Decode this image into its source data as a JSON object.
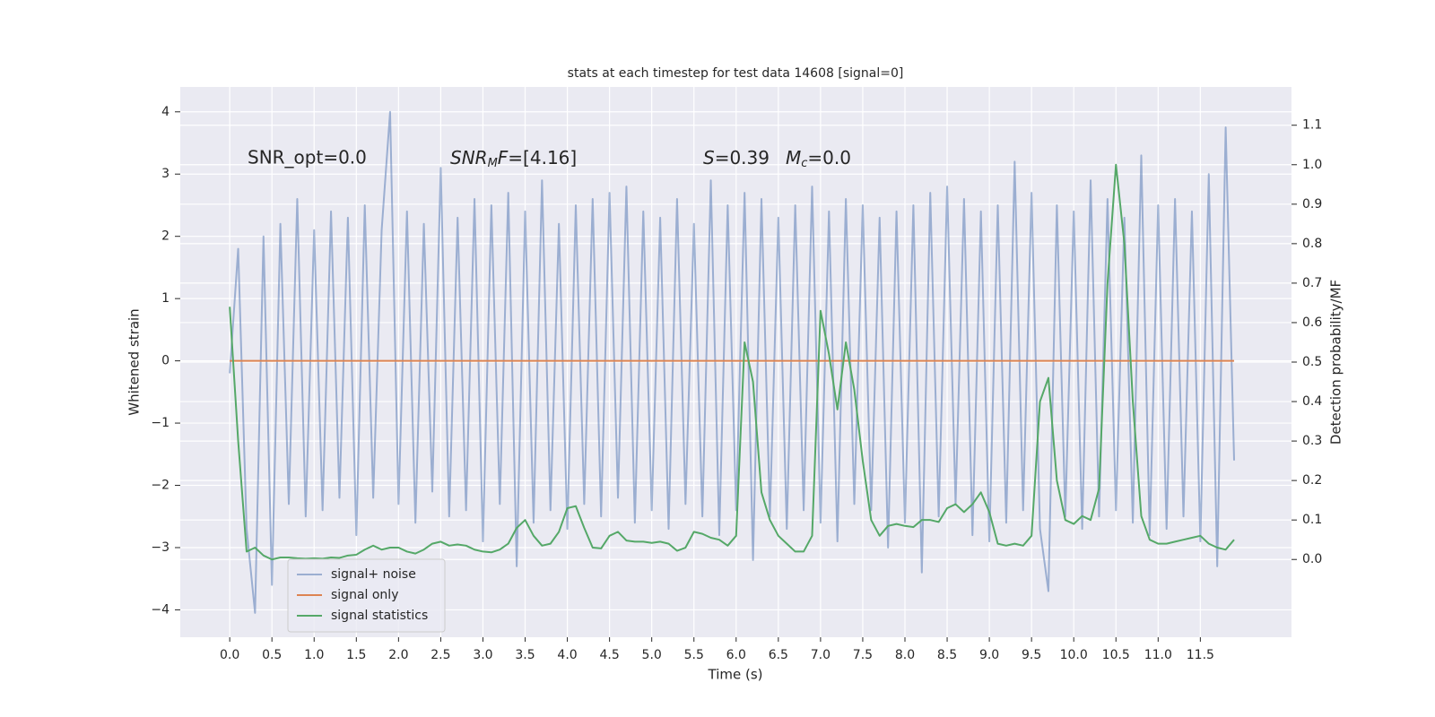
{
  "chart_data": {
    "type": "line",
    "title": "stats at each timestep for test data 14608 [signal=0]",
    "xlabel": "Time (s)",
    "ylabel": "Whitened strain",
    "y2label": "Detection probability/MF",
    "annotations": [
      [
        "SNR_opt=0.0"
      ],
      [
        "SNR",
        "M",
        "F",
        "=[4.16]"
      ],
      [
        "S",
        "=0.39",
        "M",
        "c",
        "=0.0"
      ]
    ],
    "grid": true,
    "legend": "lower left",
    "xlim": [
      -0.586,
      12.58
    ],
    "ylim": [
      -4.44,
      4.4
    ],
    "y2lim": [
      -0.197,
      1.197
    ],
    "xticks": [
      {
        "value": 0,
        "label": "0.0"
      },
      0.5,
      {
        "value": 1,
        "label": "1.0"
      },
      1.5,
      {
        "value": 2,
        "label": "2.0"
      },
      2.5,
      {
        "value": 3,
        "label": "3.0"
      },
      3.5,
      {
        "value": 4,
        "label": "4.0"
      },
      4.5,
      {
        "value": 5,
        "label": "5.0"
      },
      5.5,
      {
        "value": 6,
        "label": "6.0"
      },
      6.5,
      {
        "value": 7,
        "label": "7.0"
      },
      7.5,
      {
        "value": 8,
        "label": "8.0"
      },
      8.5,
      {
        "value": 9,
        "label": "9.0"
      },
      9.5,
      {
        "value": 10,
        "label": "10.0"
      },
      10.5,
      {
        "value": 11,
        "label": "11.0"
      },
      11.5
    ],
    "yticks": [
      {
        "value": -4,
        "label": "−4"
      },
      {
        "value": -3,
        "label": "−3"
      },
      {
        "value": -2,
        "label": "−2"
      },
      {
        "value": -1,
        "label": "−1"
      },
      0,
      1,
      2,
      3,
      4
    ],
    "y2ticks": [
      {
        "value": 0,
        "label": "0.0"
      },
      0.1,
      0.2,
      0.3,
      0.4,
      0.5,
      0.6,
      0.7,
      0.8,
      0.9,
      {
        "value": 1,
        "label": "1.0"
      },
      1.1
    ],
    "x": [
      0.0,
      0.1,
      0.2,
      0.3,
      0.4,
      0.5,
      0.6,
      0.7,
      0.8,
      0.9,
      1.0,
      1.1,
      1.2,
      1.3,
      1.4,
      1.5,
      1.6,
      1.7,
      1.8,
      1.9,
      2.0,
      2.1,
      2.2,
      2.3,
      2.4,
      2.5,
      2.6,
      2.7,
      2.8,
      2.9,
      3.0,
      3.1,
      3.2,
      3.3,
      3.4,
      3.5,
      3.6,
      3.7,
      3.8,
      3.9,
      4.0,
      4.1,
      4.2,
      4.3,
      4.4,
      4.5,
      4.6,
      4.7,
      4.8,
      4.9,
      5.0,
      5.1,
      5.2,
      5.3,
      5.4,
      5.5,
      5.6,
      5.7,
      5.8,
      5.9,
      6.0,
      6.1,
      6.2,
      6.3,
      6.4,
      6.5,
      6.6,
      6.7,
      6.8,
      6.9,
      7.0,
      7.1,
      7.2,
      7.3,
      7.4,
      7.5,
      7.6,
      7.7,
      7.8,
      7.9,
      8.0,
      8.1,
      8.2,
      8.3,
      8.4,
      8.5,
      8.6,
      8.7,
      8.8,
      8.9,
      9.0,
      9.1,
      9.2,
      9.3,
      9.4,
      9.5,
      9.6,
      9.7,
      9.8,
      9.9,
      10.0,
      10.1,
      10.2,
      10.3,
      10.4,
      10.5,
      10.6,
      10.7,
      10.8,
      10.9,
      11.0,
      11.1,
      11.2,
      11.3,
      11.4,
      11.5,
      11.6,
      11.7,
      11.8,
      11.9
    ],
    "series": [
      {
        "name": "signal+ noise",
        "color": "#4c72b0",
        "opacity": 0.5,
        "values": [
          -0.2,
          1.8,
          -2.7,
          -4.05,
          2.0,
          -3.6,
          2.2,
          -2.3,
          2.6,
          -2.5,
          2.1,
          -2.4,
          2.4,
          -2.2,
          2.3,
          -2.8,
          2.5,
          -2.2,
          2.1,
          4.0,
          -2.3,
          2.4,
          -2.6,
          2.2,
          -2.1,
          3.1,
          -2.5,
          2.3,
          -2.4,
          2.6,
          -2.9,
          2.5,
          -2.3,
          2.7,
          -3.3,
          2.4,
          -2.6,
          2.9,
          -2.4,
          2.2,
          -2.7,
          2.5,
          -2.3,
          2.6,
          -2.5,
          2.7,
          -2.2,
          2.8,
          -2.6,
          2.4,
          -2.4,
          2.3,
          -2.7,
          2.6,
          -2.3,
          2.2,
          -2.5,
          2.9,
          -2.8,
          2.5,
          -2.4,
          2.7,
          -3.2,
          2.6,
          -2.5,
          2.3,
          -2.7,
          2.5,
          -2.4,
          2.8,
          -2.6,
          2.4,
          -2.9,
          2.6,
          -2.3,
          2.5,
          -2.4,
          2.3,
          -3.0,
          2.4,
          -2.6,
          2.5,
          -3.4,
          2.7,
          -2.5,
          2.8,
          -2.3,
          2.6,
          -2.8,
          2.4,
          -2.9,
          2.5,
          -2.6,
          3.2,
          -2.4,
          2.7,
          -2.7,
          -3.7,
          2.5,
          -2.5,
          2.4,
          -2.7,
          2.9,
          -2.5,
          2.6,
          -2.4,
          2.3,
          -2.6,
          3.3,
          -2.8,
          2.5,
          -2.7,
          2.6,
          -2.5,
          2.4,
          -2.9,
          3.0,
          -3.3,
          3.75,
          -1.6
        ]
      },
      {
        "name": "signal only",
        "color": "#dd8452",
        "opacity": 1,
        "x": [
          0.0,
          11.9
        ],
        "values": [
          0,
          0
        ]
      },
      {
        "name": "signal statistics",
        "color": "#55a868",
        "opacity": 1,
        "axis": "y2",
        "values": [
          0.64,
          0.3,
          0.02,
          0.03,
          0.01,
          0.0,
          0.005,
          0.005,
          0.003,
          0.002,
          0.003,
          0.002,
          0.005,
          0.004,
          0.01,
          0.012,
          0.025,
          0.035,
          0.025,
          0.03,
          0.03,
          0.02,
          0.015,
          0.025,
          0.04,
          0.045,
          0.035,
          0.038,
          0.035,
          0.025,
          0.02,
          0.018,
          0.025,
          0.04,
          0.08,
          0.1,
          0.06,
          0.035,
          0.04,
          0.07,
          0.13,
          0.135,
          0.08,
          0.03,
          0.028,
          0.06,
          0.07,
          0.048,
          0.045,
          0.045,
          0.042,
          0.045,
          0.04,
          0.022,
          0.03,
          0.07,
          0.065,
          0.055,
          0.05,
          0.035,
          0.06,
          0.55,
          0.45,
          0.17,
          0.1,
          0.06,
          0.04,
          0.02,
          0.02,
          0.06,
          0.63,
          0.52,
          0.38,
          0.55,
          0.43,
          0.25,
          0.1,
          0.06,
          0.085,
          0.09,
          0.085,
          0.082,
          0.1,
          0.1,
          0.095,
          0.13,
          0.14,
          0.12,
          0.14,
          0.17,
          0.12,
          0.04,
          0.035,
          0.04,
          0.035,
          0.06,
          0.4,
          0.46,
          0.2,
          0.1,
          0.09,
          0.11,
          0.1,
          0.18,
          0.7,
          1.0,
          0.8,
          0.4,
          0.11,
          0.05,
          0.04,
          0.04,
          0.045,
          0.05,
          0.055,
          0.06,
          0.04,
          0.03,
          0.025,
          0.05
        ]
      }
    ]
  }
}
